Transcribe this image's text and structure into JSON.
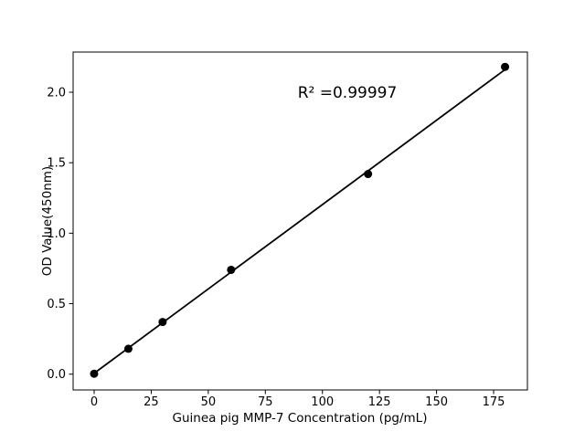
{
  "chart_data": {
    "type": "scatter",
    "title": "",
    "xlabel": "Guinea pig MMP-7 Concentration (pg/mL)",
    "ylabel": "OD Value(450nm)",
    "annotation": "R² =0.99997",
    "x": [
      0,
      15,
      30,
      60,
      120,
      180
    ],
    "y": [
      0.003,
      0.18,
      0.37,
      0.74,
      1.42,
      2.18
    ],
    "fit_line": {
      "slope": 0.01197,
      "intercept": 0.006,
      "r_squared": 0.99997,
      "x_start": 0,
      "x_end": 180
    },
    "x_ticks": [
      "0",
      "25",
      "50",
      "75",
      "100",
      "125",
      "150",
      "175"
    ],
    "x_tick_values": [
      0,
      25,
      50,
      75,
      100,
      125,
      150,
      175
    ],
    "y_ticks": [
      "0.0",
      "0.5",
      "1.0",
      "1.5",
      "2.0"
    ],
    "y_tick_values": [
      0.0,
      0.5,
      1.0,
      1.5,
      2.0
    ],
    "xlim": [
      -9.2,
      189.8
    ],
    "ylim": [
      -0.112,
      2.285
    ],
    "grid": false,
    "legend_position": "none",
    "colors": {
      "marker": "#000000",
      "line": "#000000",
      "spine": "#000000",
      "background": "#ffffff"
    }
  }
}
